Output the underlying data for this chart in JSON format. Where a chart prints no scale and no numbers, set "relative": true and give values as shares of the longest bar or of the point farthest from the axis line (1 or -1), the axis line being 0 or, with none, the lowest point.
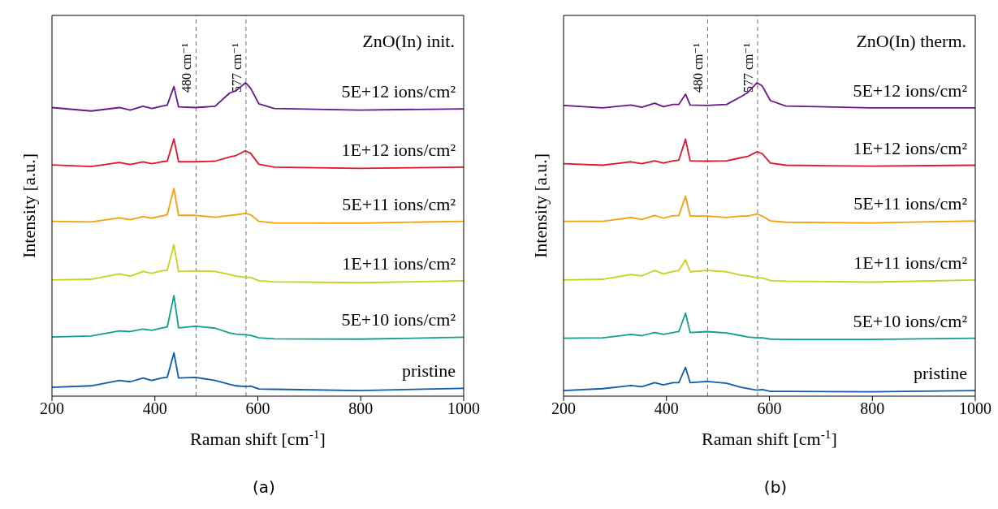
{
  "chart_data": [
    {
      "type": "line",
      "title": "ZnO(In) init.",
      "annotations": [
        "(a)"
      ],
      "xlabel": "Raman shift [cm$^{-1}$]",
      "ylabel": "Intensity [a.u.]",
      "relative": true,
      "xlim": [
        200,
        1000
      ],
      "xticks": [
        200,
        400,
        600,
        800,
        1000
      ],
      "grid": false,
      "legend": false,
      "line_style": "solid",
      "marker": "none",
      "x": [
        200,
        276,
        331,
        352,
        377,
        394,
        413,
        424,
        437,
        446,
        479,
        517,
        545,
        558,
        576,
        586,
        602,
        632,
        797,
        1000
      ],
      "series": [
        {
          "name": "pristine",
          "color": "#0f5bab",
          "values": [
            0.028,
            0.033,
            0.05,
            0.046,
            0.058,
            0.05,
            0.058,
            0.06,
            0.138,
            0.058,
            0.06,
            0.05,
            0.038,
            0.033,
            0.031,
            0.032,
            0.023,
            0.022,
            0.018,
            0.025
          ]
        },
        {
          "name": "5E+10 ions/cm²",
          "color": "#10a08a",
          "values": [
            0.189,
            0.192,
            0.208,
            0.206,
            0.214,
            0.21,
            0.217,
            0.221,
            0.321,
            0.218,
            0.223,
            0.217,
            0.202,
            0.198,
            0.196,
            0.194,
            0.186,
            0.183,
            0.182,
            0.188
          ]
        },
        {
          "name": "1E+11 ions/cm²",
          "color": "#c8d21e",
          "values": [
            0.371,
            0.373,
            0.39,
            0.383,
            0.398,
            0.392,
            0.4,
            0.402,
            0.483,
            0.398,
            0.4,
            0.398,
            0.388,
            0.383,
            0.379,
            0.379,
            0.368,
            0.365,
            0.362,
            0.368
          ]
        },
        {
          "name": "5E+11 ions/cm²",
          "color": "#f5a00a",
          "values": [
            0.558,
            0.556,
            0.569,
            0.563,
            0.573,
            0.568,
            0.575,
            0.579,
            0.663,
            0.577,
            0.577,
            0.571,
            0.577,
            0.579,
            0.583,
            0.579,
            0.558,
            0.553,
            0.552,
            0.558
          ]
        },
        {
          "name": "1E+12 ions/cm²",
          "color": "#e3132a",
          "values": [
            0.738,
            0.733,
            0.746,
            0.739,
            0.748,
            0.742,
            0.748,
            0.75,
            0.821,
            0.748,
            0.748,
            0.75,
            0.763,
            0.768,
            0.783,
            0.775,
            0.74,
            0.731,
            0.727,
            0.731
          ]
        },
        {
          "name": "5E+12 ions/cm²",
          "color": "#6a1490",
          "values": [
            0.921,
            0.91,
            0.921,
            0.913,
            0.925,
            0.918,
            0.925,
            0.929,
            0.988,
            0.923,
            0.921,
            0.925,
            0.967,
            0.975,
            1.0,
            0.983,
            0.933,
            0.918,
            0.913,
            0.917
          ]
        }
      ],
      "ref_lines": [
        {
          "axis": "x",
          "value": 480,
          "label": "480 cm⁻¹",
          "color": "#707070",
          "line_style": "dashed"
        },
        {
          "axis": "x",
          "value": 577,
          "label": "577 cm⁻¹",
          "color": "#707070",
          "line_style": "dashed"
        }
      ]
    },
    {
      "type": "line",
      "title": "ZnO(In) therm.",
      "annotations": [
        "(b)"
      ],
      "xlabel": "Raman shift [cm$^{-1}$]",
      "ylabel": "Intensity [a.u.]",
      "relative": true,
      "xlim": [
        200,
        1000
      ],
      "xticks": [
        200,
        400,
        600,
        800,
        1000
      ],
      "grid": false,
      "legend": false,
      "line_style": "solid",
      "marker": "none",
      "x": [
        200,
        276,
        331,
        352,
        377,
        394,
        413,
        424,
        437,
        446,
        479,
        517,
        545,
        558,
        576,
        586,
        602,
        632,
        797,
        1000
      ],
      "series": [
        {
          "name": "pristine",
          "color": "#0f5bab",
          "values": [
            0.018,
            0.024,
            0.034,
            0.03,
            0.043,
            0.036,
            0.043,
            0.043,
            0.092,
            0.043,
            0.047,
            0.041,
            0.028,
            0.024,
            0.019,
            0.021,
            0.015,
            0.015,
            0.014,
            0.018
          ]
        },
        {
          "name": "5E+10 ions/cm²",
          "color": "#10a08a",
          "values": [
            0.185,
            0.186,
            0.197,
            0.193,
            0.203,
            0.197,
            0.203,
            0.206,
            0.265,
            0.203,
            0.206,
            0.202,
            0.193,
            0.189,
            0.186,
            0.186,
            0.182,
            0.181,
            0.181,
            0.185
          ]
        },
        {
          "name": "1E+11 ions/cm²",
          "color": "#c8d21e",
          "values": [
            0.371,
            0.373,
            0.388,
            0.384,
            0.401,
            0.39,
            0.398,
            0.401,
            0.435,
            0.397,
            0.401,
            0.397,
            0.386,
            0.384,
            0.378,
            0.377,
            0.369,
            0.367,
            0.364,
            0.371
          ]
        },
        {
          "name": "5E+11 ions/cm²",
          "color": "#f5a00a",
          "values": [
            0.558,
            0.558,
            0.57,
            0.564,
            0.577,
            0.568,
            0.576,
            0.576,
            0.638,
            0.575,
            0.575,
            0.57,
            0.575,
            0.575,
            0.581,
            0.575,
            0.559,
            0.555,
            0.553,
            0.559
          ]
        },
        {
          "name": "1E+12 ions/cm²",
          "color": "#e3132a",
          "values": [
            0.742,
            0.737,
            0.748,
            0.742,
            0.751,
            0.744,
            0.751,
            0.753,
            0.82,
            0.751,
            0.75,
            0.751,
            0.761,
            0.765,
            0.78,
            0.774,
            0.744,
            0.737,
            0.734,
            0.737
          ]
        },
        {
          "name": "5E+12 ions/cm²",
          "color": "#6a1490",
          "values": [
            0.928,
            0.92,
            0.929,
            0.922,
            0.935,
            0.924,
            0.931,
            0.931,
            0.964,
            0.929,
            0.928,
            0.931,
            0.956,
            0.969,
            1.0,
            0.99,
            0.943,
            0.926,
            0.92,
            0.92
          ]
        }
      ],
      "ref_lines": [
        {
          "axis": "x",
          "value": 480,
          "label": "480 cm⁻¹",
          "color": "#707070",
          "line_style": "dashed"
        },
        {
          "axis": "x",
          "value": 577,
          "label": "577 cm⁻¹",
          "color": "#707070",
          "line_style": "dashed"
        }
      ]
    }
  ]
}
